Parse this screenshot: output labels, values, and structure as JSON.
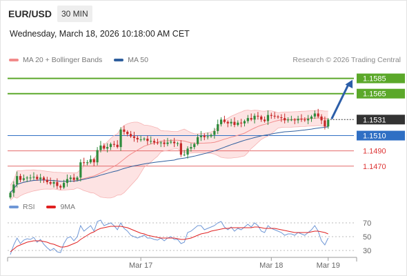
{
  "header": {
    "symbol": "EUR/USD",
    "timeframe": "30 MIN",
    "datetime": "Wednesday, March 18, 2026 10:18:00 AM CET"
  },
  "legend": {
    "bollinger_label": "MA 20 + Bollinger Bands",
    "bollinger_color": "#f28b8b",
    "ma50_label": "MA 50",
    "ma50_color": "#2f5f9e",
    "credit": "Research © 2026 Trading Central"
  },
  "rsi_legend": {
    "rsi_label": "RSI",
    "rsi_color": "#6f97d6",
    "ma_label": "9MA",
    "ma_color": "#e02020"
  },
  "colors": {
    "bull": "#2e8b3c",
    "bear": "#c62828",
    "target": "#5ba82a",
    "pivot": "#2f6fc4",
    "support": "#e05050",
    "last": "#333333",
    "arrow": "#2c5ea8"
  },
  "chart_data": [
    {
      "type": "candlestick",
      "title": "EUR/USD",
      "interval": "30 MIN",
      "x_ticks": [
        "Mar 17",
        "Mar 18",
        "Mar 19"
      ],
      "ylim": [
        1.143,
        1.16
      ],
      "levels": [
        {
          "label": "1.1585",
          "value": 1.1585,
          "kind": "target"
        },
        {
          "label": "1.1565",
          "value": 1.1565,
          "kind": "target"
        },
        {
          "label": "1.1531",
          "value": 1.1531,
          "kind": "last"
        },
        {
          "label": "1.1510",
          "value": 1.151,
          "kind": "pivot"
        },
        {
          "label": "1.1490",
          "value": 1.149,
          "kind": "support"
        },
        {
          "label": "1.1470",
          "value": 1.147,
          "kind": "support"
        }
      ],
      "last_price": 1.1531,
      "close": [
        1.1435,
        1.1446,
        1.1457,
        1.1452,
        1.1454,
        1.1455,
        1.1455,
        1.1456,
        1.1453,
        1.1455,
        1.1452,
        1.1449,
        1.1447,
        1.1449,
        1.1444,
        1.1442,
        1.1448,
        1.1453,
        1.1455,
        1.1452,
        1.1455,
        1.1475,
        1.1474,
        1.1475,
        1.1479,
        1.1475,
        1.1491,
        1.1497,
        1.1493,
        1.1495,
        1.1499,
        1.1498,
        1.1495,
        1.1518,
        1.1515,
        1.1512,
        1.1509,
        1.1507,
        1.1505,
        1.1505,
        1.1506,
        1.1503,
        1.1503,
        1.1501,
        1.15,
        1.1501,
        1.1499,
        1.1501,
        1.1502,
        1.15,
        1.15,
        1.1485,
        1.1485,
        1.1493,
        1.1495,
        1.1499,
        1.1508,
        1.151,
        1.1508,
        1.1509,
        1.1511,
        1.1516,
        1.1525,
        1.1531,
        1.1528,
        1.1526,
        1.1528,
        1.1524,
        1.1527,
        1.1526,
        1.1529,
        1.1533,
        1.1531,
        1.1536,
        1.1535,
        1.1531,
        1.1529,
        1.1537,
        1.1536,
        1.1535,
        1.1534,
        1.1533,
        1.153,
        1.1531,
        1.1531,
        1.153,
        1.1532,
        1.1531,
        1.153,
        1.1532,
        1.1535,
        1.1539,
        1.1535,
        1.153,
        1.1522,
        1.1531
      ]
    },
    {
      "type": "line",
      "title": "RSI",
      "yticks": [
        70,
        50,
        30
      ],
      "ylim": [
        22,
        78
      ],
      "series": [
        {
          "name": "RSI",
          "values": [
            24,
            38,
            48,
            40,
            45,
            47,
            46,
            49,
            42,
            46,
            39,
            34,
            30,
            33,
            28,
            27,
            40,
            48,
            50,
            44,
            50,
            66,
            58,
            62,
            66,
            58,
            72,
            74,
            66,
            68,
            70,
            66,
            60,
            70,
            62,
            58,
            52,
            50,
            48,
            50,
            52,
            48,
            48,
            46,
            45,
            48,
            44,
            48,
            50,
            46,
            46,
            40,
            42,
            56,
            58,
            62,
            66,
            66,
            60,
            62,
            64,
            66,
            70,
            72,
            64,
            60,
            64,
            58,
            62,
            60,
            64,
            68,
            64,
            70,
            66,
            58,
            56,
            66,
            62,
            60,
            58,
            56,
            52,
            54,
            54,
            52,
            56,
            54,
            52,
            56,
            60,
            66,
            58,
            44,
            38,
            48
          ]
        },
        {
          "name": "9MA",
          "values": [
            28,
            32,
            36,
            38,
            40,
            42,
            43,
            44,
            44,
            44,
            43,
            42,
            40,
            39,
            37,
            35,
            35,
            36,
            38,
            40,
            42,
            46,
            49,
            52,
            55,
            57,
            60,
            62,
            63,
            64,
            65,
            65,
            65,
            65,
            64,
            63,
            61,
            59,
            57,
            55,
            54,
            52,
            51,
            50,
            49,
            48,
            48,
            48,
            48,
            48,
            47,
            46,
            46,
            47,
            48,
            50,
            52,
            54,
            55,
            56,
            58,
            59,
            60,
            61,
            62,
            62,
            63,
            63,
            63,
            63,
            63,
            63,
            63,
            64,
            64,
            63,
            62,
            62,
            62,
            62,
            61,
            60,
            59,
            58,
            57,
            56,
            56,
            56,
            56,
            56,
            57,
            58,
            58,
            57,
            56,
            54
          ]
        }
      ]
    }
  ]
}
